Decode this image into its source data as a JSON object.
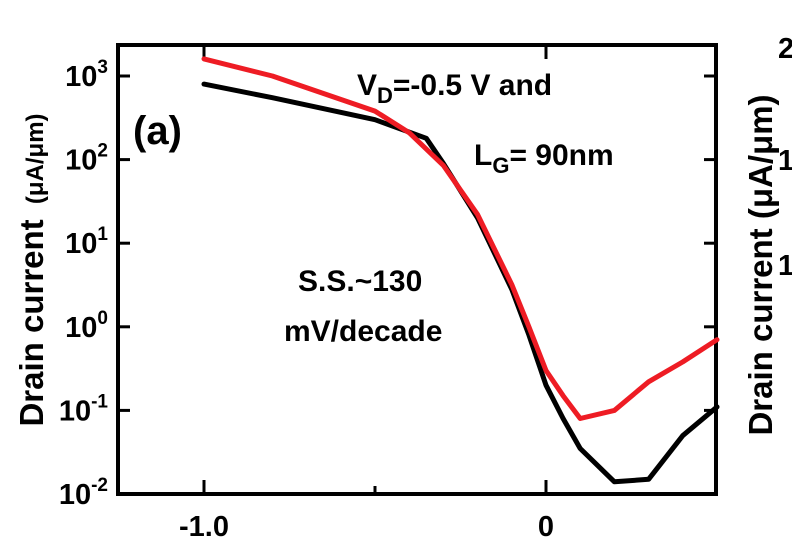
{
  "chart_data": {
    "type": "line",
    "panel_label": "(a)",
    "ylabel": {
      "main": "Drain current",
      "unit": "(μA/μm)"
    },
    "xlabel": "",
    "xlim": [
      -1.0,
      0.5
    ],
    "ylim_log10": [
      -2,
      3.3
    ],
    "log_y": true,
    "x_ticks": [
      {
        "value": -1.0,
        "label": "-1.0"
      },
      {
        "value": 0.0,
        "label": "0"
      }
    ],
    "y_ticks": [
      {
        "exp": -2,
        "base": "10",
        "sup": "-2"
      },
      {
        "exp": -1,
        "base": "10",
        "sup": "-1"
      },
      {
        "exp": 0,
        "base": "10",
        "sup": "0"
      },
      {
        "exp": 1,
        "base": "10",
        "sup": "1"
      },
      {
        "exp": 2,
        "base": "10",
        "sup": "2"
      },
      {
        "exp": 3,
        "base": "10",
        "sup": "3"
      }
    ],
    "annotations": {
      "vd_prefix": "V",
      "vd_sub": "D",
      "vd_rest": "=-0.5 V and",
      "lg_prefix": "L",
      "lg_sub": "G",
      "lg_rest": "= 90nm",
      "ss_line1": "S.S.~130",
      "ss_line2": "mV/decade"
    },
    "right_edge_text": {
      "ylabel": "Drain current (μA/μm)",
      "tick_2": "2",
      "tick_1a": "1",
      "tick_1b": "1"
    },
    "series": [
      {
        "color": "#000000",
        "points": [
          [
            -1.0,
            800
          ],
          [
            -0.8,
            550
          ],
          [
            -0.5,
            300
          ],
          [
            -0.35,
            180
          ],
          [
            -0.3,
            90
          ],
          [
            -0.2,
            20
          ],
          [
            -0.1,
            2.8
          ],
          [
            -0.05,
            0.8
          ],
          [
            0.0,
            0.2
          ],
          [
            0.05,
            0.08
          ],
          [
            0.1,
            0.035
          ],
          [
            0.2,
            0.014
          ],
          [
            0.3,
            0.015
          ],
          [
            0.4,
            0.05
          ],
          [
            0.5,
            0.11
          ]
        ]
      },
      {
        "color": "#ee1c24",
        "points": [
          [
            -1.0,
            1600
          ],
          [
            -0.8,
            1000
          ],
          [
            -0.5,
            380
          ],
          [
            -0.4,
            210
          ],
          [
            -0.3,
            85
          ],
          [
            -0.2,
            22
          ],
          [
            -0.1,
            3.2
          ],
          [
            -0.05,
            1.0
          ],
          [
            0.0,
            0.3
          ],
          [
            0.05,
            0.15
          ],
          [
            0.1,
            0.08
          ],
          [
            0.2,
            0.1
          ],
          [
            0.3,
            0.22
          ],
          [
            0.4,
            0.38
          ],
          [
            0.5,
            0.7
          ]
        ]
      }
    ]
  }
}
